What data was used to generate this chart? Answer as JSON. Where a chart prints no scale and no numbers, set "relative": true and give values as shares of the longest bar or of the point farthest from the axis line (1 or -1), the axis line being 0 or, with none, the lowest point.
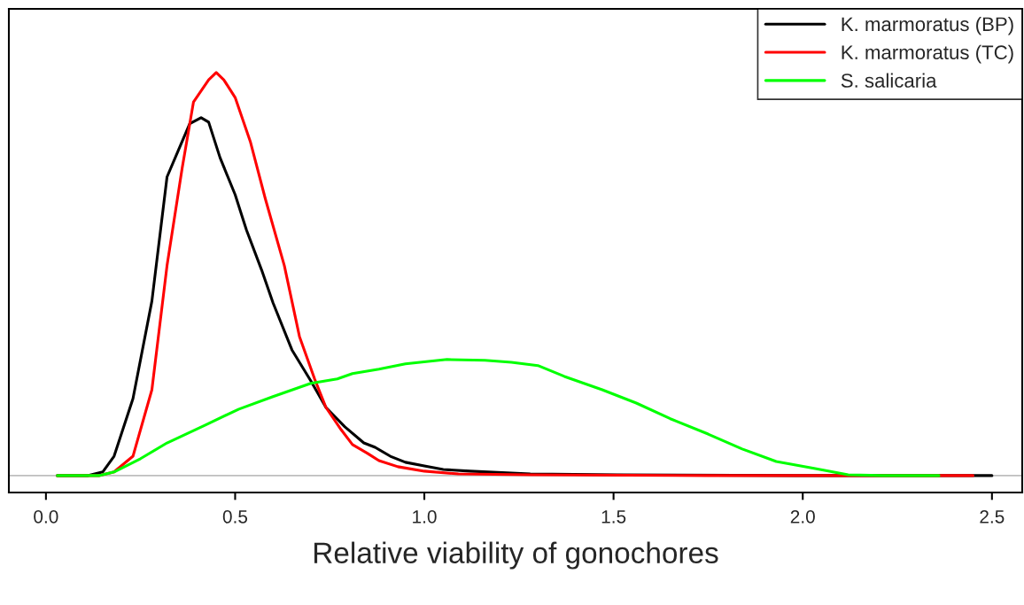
{
  "chart_data": {
    "type": "line",
    "relative": true,
    "xlabel": "Relative viability of gonochores",
    "xlim": [
      -0.098,
      2.58
    ],
    "xticks": [
      {
        "value": 0,
        "label": "0.0"
      },
      {
        "value": 0.5,
        "label": "0.5"
      },
      {
        "value": 1,
        "label": "1.0"
      },
      {
        "value": 1.5,
        "label": "1.5"
      },
      {
        "value": 2,
        "label": "2.0"
      },
      {
        "value": 2.5,
        "label": "2.5"
      }
    ],
    "tick_labels": "x",
    "legend": "top right",
    "grid": false,
    "line_style": "solid",
    "marker": "none",
    "ref_lines": [
      {
        "axis": "y",
        "value": 0,
        "color": "#bebebe"
      }
    ],
    "series": [
      {
        "name": "K. marmoratus (BP)",
        "color": "#000000",
        "x": [
          0.03,
          0.11,
          0.15,
          0.18,
          0.23,
          0.28,
          0.32,
          0.35,
          0.38,
          0.41,
          0.43,
          0.46,
          0.5,
          0.53,
          0.57,
          0.6,
          0.65,
          0.7,
          0.74,
          0.79,
          0.84,
          0.87,
          0.91,
          0.95,
          1.0,
          1.05,
          1.12,
          1.28,
          1.51,
          1.98,
          2.5
        ],
        "values": [
          0,
          0,
          0.009,
          0.048,
          0.191,
          0.433,
          0.741,
          0.807,
          0.873,
          0.888,
          0.877,
          0.789,
          0.697,
          0.609,
          0.51,
          0.429,
          0.312,
          0.235,
          0.169,
          0.121,
          0.081,
          0.07,
          0.048,
          0.033,
          0.024,
          0.015,
          0.011,
          0.004,
          0.002,
          0,
          0
        ]
      },
      {
        "name": "K. marmoratus (TC)",
        "color": "#ff0000",
        "x": [
          0.03,
          0.14,
          0.18,
          0.23,
          0.28,
          0.32,
          0.36,
          0.39,
          0.43,
          0.45,
          0.47,
          0.5,
          0.54,
          0.58,
          0.63,
          0.67,
          0.71,
          0.74,
          0.78,
          0.81,
          0.85,
          0.88,
          0.93,
          1.0,
          1.09,
          1.28,
          1.75,
          2.45
        ],
        "values": [
          0,
          0,
          0.009,
          0.048,
          0.213,
          0.521,
          0.763,
          0.927,
          0.982,
          1,
          0.982,
          0.938,
          0.829,
          0.686,
          0.521,
          0.345,
          0.24,
          0.169,
          0.114,
          0.077,
          0.055,
          0.037,
          0.022,
          0.011,
          0.004,
          0.002,
          0,
          0
        ]
      },
      {
        "name": "S. salicaria",
        "color": "#00ff00",
        "x": [
          0.03,
          0.14,
          0.18,
          0.25,
          0.32,
          0.42,
          0.51,
          0.6,
          0.7,
          0.77,
          0.81,
          0.88,
          0.95,
          1.06,
          1.16,
          1.23,
          1.3,
          1.37,
          1.47,
          1.56,
          1.65,
          1.75,
          1.84,
          1.93,
          2.03,
          2.12,
          2.21,
          2.36
        ],
        "values": [
          0,
          0,
          0.009,
          0.042,
          0.081,
          0.125,
          0.165,
          0.196,
          0.229,
          0.24,
          0.253,
          0.264,
          0.277,
          0.288,
          0.286,
          0.281,
          0.273,
          0.246,
          0.213,
          0.18,
          0.141,
          0.103,
          0.066,
          0.035,
          0.018,
          0.002,
          0,
          0
        ]
      }
    ]
  }
}
